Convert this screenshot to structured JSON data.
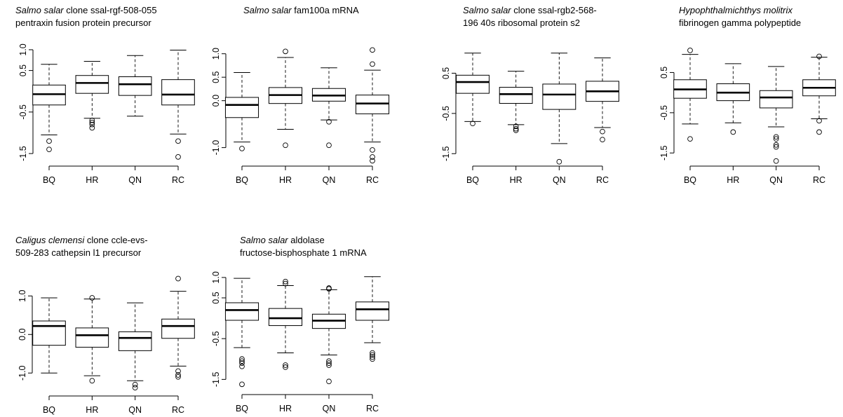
{
  "chart_data": [
    {
      "type": "box",
      "title_italic": "Salmo salar",
      "title_rest": " clone ssal-rgf-508-055",
      "title_line2": "pentraxin fusion protein precursor",
      "categories": [
        "BQ",
        "HR",
        "QN",
        "RC"
      ],
      "ylim": [
        -1.65,
        1.05
      ],
      "yticks": [
        1.0,
        0.5,
        -0.5,
        -1.5
      ],
      "ytick_labels": [
        "1.0",
        "0.5",
        "-0.5",
        "-1.5"
      ],
      "boxes": [
        {
          "whisker_low": -1.05,
          "q1": -0.33,
          "median": -0.07,
          "q3": 0.15,
          "whisker_high": 0.65,
          "outliers": [
            -1.2,
            -1.4
          ]
        },
        {
          "whisker_low": -0.65,
          "q1": -0.05,
          "median": 0.2,
          "q3": 0.38,
          "whisker_high": 0.72,
          "outliers": [
            -0.7,
            -0.75,
            -0.8,
            -0.88
          ]
        },
        {
          "whisker_low": -0.6,
          "q1": -0.1,
          "median": 0.17,
          "q3": 0.35,
          "whisker_high": 0.86,
          "outliers": []
        },
        {
          "whisker_low": -1.03,
          "q1": -0.33,
          "median": -0.08,
          "q3": 0.28,
          "whisker_high": 0.99,
          "outliers": [
            -1.2,
            -1.58
          ]
        }
      ]
    },
    {
      "type": "box",
      "title_italic": "Salmo salar",
      "title_rest": " fam100a mRNA",
      "title_line2": "",
      "categories": [
        "BQ",
        "HR",
        "QN",
        "RC"
      ],
      "ylim": [
        -1.2,
        1.1
      ],
      "yticks": [
        1.0,
        0.5,
        0.0,
        -1.0
      ],
      "ytick_labels": [
        "1.0",
        "0.5",
        "0.0",
        "-1.0"
      ],
      "boxes": [
        {
          "whisker_low": -0.88,
          "q1": -0.36,
          "median": -0.09,
          "q3": 0.07,
          "whisker_high": 0.6,
          "outliers": [
            -1.02
          ]
        },
        {
          "whisker_low": -0.61,
          "q1": -0.06,
          "median": 0.12,
          "q3": 0.28,
          "whisker_high": 0.92,
          "outliers": [
            -0.95,
            1.05
          ]
        },
        {
          "whisker_low": -0.41,
          "q1": -0.01,
          "median": 0.11,
          "q3": 0.26,
          "whisker_high": 0.7,
          "outliers": [
            -0.45,
            -0.95
          ]
        },
        {
          "whisker_low": -0.88,
          "q1": -0.28,
          "median": -0.06,
          "q3": 0.12,
          "whisker_high": 0.65,
          "outliers": [
            0.78,
            1.08,
            -1.05,
            -1.2,
            -1.28
          ]
        }
      ]
    },
    {
      "type": "box",
      "title_italic": "Salmo salar",
      "title_rest": " clone ssal-rgb2-568-",
      "title_line2": "196 40s ribosomal protein s2",
      "categories": [
        "BQ",
        "HR",
        "QN",
        "RC"
      ],
      "ylim": [
        -1.6,
        1.1
      ],
      "yticks": [
        0.5,
        -0.5,
        -1.5
      ],
      "ytick_labels": [
        "0.5",
        "-0.5",
        "-1.5"
      ],
      "boxes": [
        {
          "whisker_low": -0.7,
          "q1": 0.0,
          "median": 0.28,
          "q3": 0.45,
          "whisker_high": 1.0,
          "outliers": [
            -0.75
          ]
        },
        {
          "whisker_low": -0.78,
          "q1": -0.25,
          "median": -0.02,
          "q3": 0.15,
          "whisker_high": 0.55,
          "outliers": [
            -0.82,
            -0.88,
            -0.92
          ]
        },
        {
          "whisker_low": -1.25,
          "q1": -0.4,
          "median": -0.03,
          "q3": 0.23,
          "whisker_high": 1.0,
          "outliers": [
            -1.7
          ]
        },
        {
          "whisker_low": -0.85,
          "q1": -0.2,
          "median": 0.05,
          "q3": 0.3,
          "whisker_high": 0.88,
          "outliers": [
            -0.95,
            -1.15
          ]
        }
      ]
    },
    {
      "type": "box",
      "title_italic": "Hypophthalmichthys molitrix",
      "title_rest": "",
      "title_line2": "fibrinogen gamma polypeptide",
      "categories": [
        "BQ",
        "HR",
        "QN",
        "RC"
      ],
      "ylim": [
        -1.6,
        1.1
      ],
      "yticks": [
        0.5,
        -0.5,
        -1.5
      ],
      "ytick_labels": [
        "0.5",
        "-0.5",
        "-1.5"
      ],
      "boxes": [
        {
          "whisker_low": -0.78,
          "q1": -0.14,
          "median": 0.08,
          "q3": 0.32,
          "whisker_high": 0.95,
          "outliers": [
            1.05,
            -1.15
          ]
        },
        {
          "whisker_low": -0.75,
          "q1": -0.2,
          "median": 0.0,
          "q3": 0.22,
          "whisker_high": 0.72,
          "outliers": [
            -0.98
          ]
        },
        {
          "whisker_low": -0.85,
          "q1": -0.38,
          "median": -0.12,
          "q3": 0.05,
          "whisker_high": 0.65,
          "outliers": [
            -1.1,
            -1.15,
            -1.3,
            -1.35,
            -1.7
          ]
        },
        {
          "whisker_low": -0.65,
          "q1": -0.08,
          "median": 0.12,
          "q3": 0.32,
          "whisker_high": 0.88,
          "outliers": [
            0.9,
            -0.7,
            -0.98
          ]
        }
      ]
    },
    {
      "type": "box",
      "title_italic": "Caligus clemensi",
      "title_rest": " clone ccle-evs-",
      "title_line2": "509-283 cathepsin l1 precursor",
      "categories": [
        "BQ",
        "HR",
        "QN",
        "RC"
      ],
      "ylim": [
        -1.45,
        1.55
      ],
      "yticks": [
        1.0,
        0.0,
        -1.0
      ],
      "ytick_labels": [
        "1.0",
        "0.0",
        "-1.0"
      ],
      "boxes": [
        {
          "whisker_low": -1.0,
          "q1": -0.28,
          "median": 0.22,
          "q3": 0.35,
          "whisker_high": 0.95,
          "outliers": []
        },
        {
          "whisker_low": -1.07,
          "q1": -0.33,
          "median": -0.02,
          "q3": 0.17,
          "whisker_high": 0.92,
          "outliers": [
            0.95,
            -1.2
          ]
        },
        {
          "whisker_low": -1.2,
          "q1": -0.42,
          "median": -0.09,
          "q3": 0.07,
          "whisker_high": 0.82,
          "outliers": [
            -1.3,
            -1.38
          ]
        },
        {
          "whisker_low": -0.82,
          "q1": -0.1,
          "median": 0.22,
          "q3": 0.4,
          "whisker_high": 1.12,
          "outliers": [
            1.45,
            -0.95,
            -1.05,
            -1.1
          ]
        }
      ]
    },
    {
      "type": "box",
      "title_italic": "Salmo salar",
      "title_rest": " aldolase",
      "title_line2": "fructose-bisphosphate 1 mRNA",
      "categories": [
        "BQ",
        "HR",
        "QN",
        "RC"
      ],
      "ylim": [
        -1.7,
        1.05
      ],
      "yticks": [
        1.0,
        0.5,
        -0.5,
        -1.5
      ],
      "ytick_labels": [
        "1.0",
        "0.5",
        "-0.5",
        "-1.5"
      ],
      "boxes": [
        {
          "whisker_low": -0.72,
          "q1": -0.05,
          "median": 0.2,
          "q3": 0.38,
          "whisker_high": 0.98,
          "outliers": [
            -1.0,
            -1.05,
            -1.1,
            -1.18,
            -1.62
          ]
        },
        {
          "whisker_low": -0.85,
          "q1": -0.18,
          "median": 0.0,
          "q3": 0.24,
          "whisker_high": 0.8,
          "outliers": [
            0.85,
            0.9,
            -1.15,
            -1.2
          ]
        },
        {
          "whisker_low": -0.9,
          "q1": -0.25,
          "median": -0.06,
          "q3": 0.1,
          "whisker_high": 0.7,
          "outliers": [
            0.72,
            0.74,
            -1.05,
            -1.1,
            -1.15,
            -1.55
          ]
        },
        {
          "whisker_low": -0.6,
          "q1": -0.05,
          "median": 0.22,
          "q3": 0.4,
          "whisker_high": 1.02,
          "outliers": [
            -0.85,
            -0.9,
            -0.95,
            -1.0
          ]
        }
      ]
    }
  ]
}
